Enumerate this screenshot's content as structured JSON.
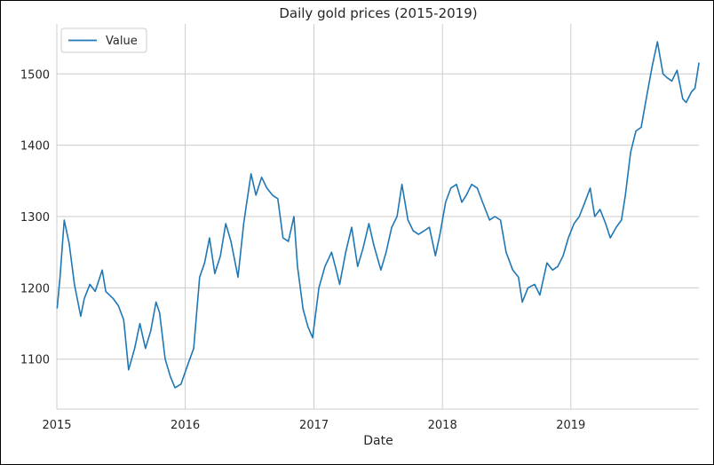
{
  "chart_data": {
    "type": "line",
    "title": "Daily gold prices (2015-2019)",
    "xlabel": "Date",
    "ylabel": "",
    "grid": true,
    "legend": "top-left",
    "xlim": [
      "2015-01-01",
      "2019-12-31"
    ],
    "ylim": [
      1030,
      1570
    ],
    "x_ticks": [
      {
        "value": "2015-01-01",
        "label": "2015"
      },
      {
        "value": "2016-01-01",
        "label": "2016"
      },
      {
        "value": "2017-01-01",
        "label": "2017"
      },
      {
        "value": "2018-01-01",
        "label": "2018"
      },
      {
        "value": "2019-01-01",
        "label": "2019"
      }
    ],
    "y_ticks": [
      {
        "value": 1100,
        "label": "1100"
      },
      {
        "value": 1200,
        "label": "1200"
      },
      {
        "value": 1300,
        "label": "1300"
      },
      {
        "value": 1400,
        "label": "1400"
      },
      {
        "value": 1500,
        "label": "1500"
      }
    ],
    "series": [
      {
        "name": "Value",
        "color": "#1f77b4",
        "x": [
          "2015-01-02",
          "2015-01-10",
          "2015-01-22",
          "2015-02-05",
          "2015-02-20",
          "2015-03-10",
          "2015-03-20",
          "2015-04-05",
          "2015-04-20",
          "2015-05-10",
          "2015-05-20",
          "2015-06-10",
          "2015-06-25",
          "2015-07-10",
          "2015-07-24",
          "2015-08-10",
          "2015-08-25",
          "2015-09-10",
          "2015-09-25",
          "2015-10-10",
          "2015-10-20",
          "2015-11-05",
          "2015-11-20",
          "2015-12-03",
          "2015-12-20",
          "2016-01-10",
          "2016-01-25",
          "2016-02-11",
          "2016-02-25",
          "2016-03-10",
          "2016-03-25",
          "2016-04-10",
          "2016-04-25",
          "2016-05-10",
          "2016-05-30",
          "2016-06-15",
          "2016-06-24",
          "2016-07-06",
          "2016-07-20",
          "2016-08-05",
          "2016-08-20",
          "2016-09-05",
          "2016-09-20",
          "2016-10-05",
          "2016-10-20",
          "2016-11-05",
          "2016-11-15",
          "2016-12-01",
          "2016-12-15",
          "2016-12-28",
          "2017-01-15",
          "2017-02-01",
          "2017-02-20",
          "2017-03-05",
          "2017-03-15",
          "2017-04-01",
          "2017-04-18",
          "2017-05-05",
          "2017-05-20",
          "2017-06-06",
          "2017-06-20",
          "2017-07-10",
          "2017-07-25",
          "2017-08-10",
          "2017-08-25",
          "2017-09-08",
          "2017-09-25",
          "2017-10-10",
          "2017-10-25",
          "2017-11-10",
          "2017-11-25",
          "2017-12-12",
          "2017-12-25",
          "2018-01-10",
          "2018-01-25",
          "2018-02-10",
          "2018-02-25",
          "2018-03-10",
          "2018-03-25",
          "2018-04-10",
          "2018-04-25",
          "2018-05-15",
          "2018-05-30",
          "2018-06-15",
          "2018-07-01",
          "2018-07-20",
          "2018-08-05",
          "2018-08-16",
          "2018-09-01",
          "2018-09-20",
          "2018-10-05",
          "2018-10-25",
          "2018-11-10",
          "2018-11-25",
          "2018-12-10",
          "2018-12-25",
          "2019-01-10",
          "2019-01-25",
          "2019-02-10",
          "2019-02-25",
          "2019-03-10",
          "2019-03-25",
          "2019-04-10",
          "2019-04-23",
          "2019-05-10",
          "2019-05-25",
          "2019-06-05",
          "2019-06-20",
          "2019-07-05",
          "2019-07-20",
          "2019-08-05",
          "2019-08-20",
          "2019-09-04",
          "2019-09-20",
          "2019-10-01",
          "2019-10-15",
          "2019-10-30",
          "2019-11-15",
          "2019-11-25",
          "2019-12-10",
          "2019-12-20",
          "2019-12-31"
        ],
        "values": [
          1172,
          1215,
          1295,
          1262,
          1205,
          1160,
          1185,
          1205,
          1195,
          1225,
          1195,
          1185,
          1175,
          1155,
          1085,
          1115,
          1150,
          1115,
          1140,
          1180,
          1165,
          1100,
          1075,
          1060,
          1065,
          1095,
          1115,
          1215,
          1235,
          1270,
          1220,
          1245,
          1290,
          1265,
          1215,
          1290,
          1320,
          1360,
          1330,
          1355,
          1340,
          1330,
          1325,
          1270,
          1265,
          1300,
          1230,
          1170,
          1145,
          1130,
          1200,
          1230,
          1250,
          1225,
          1205,
          1250,
          1285,
          1230,
          1255,
          1290,
          1260,
          1225,
          1250,
          1285,
          1300,
          1345,
          1295,
          1280,
          1275,
          1280,
          1285,
          1245,
          1275,
          1320,
          1340,
          1345,
          1320,
          1330,
          1345,
          1340,
          1320,
          1295,
          1300,
          1295,
          1250,
          1225,
          1215,
          1180,
          1200,
          1205,
          1190,
          1235,
          1225,
          1230,
          1245,
          1270,
          1290,
          1300,
          1320,
          1340,
          1300,
          1310,
          1290,
          1270,
          1285,
          1295,
          1330,
          1390,
          1420,
          1425,
          1470,
          1510,
          1545,
          1500,
          1495,
          1490,
          1505,
          1465,
          1460,
          1475,
          1480,
          1515
        ]
      }
    ]
  }
}
